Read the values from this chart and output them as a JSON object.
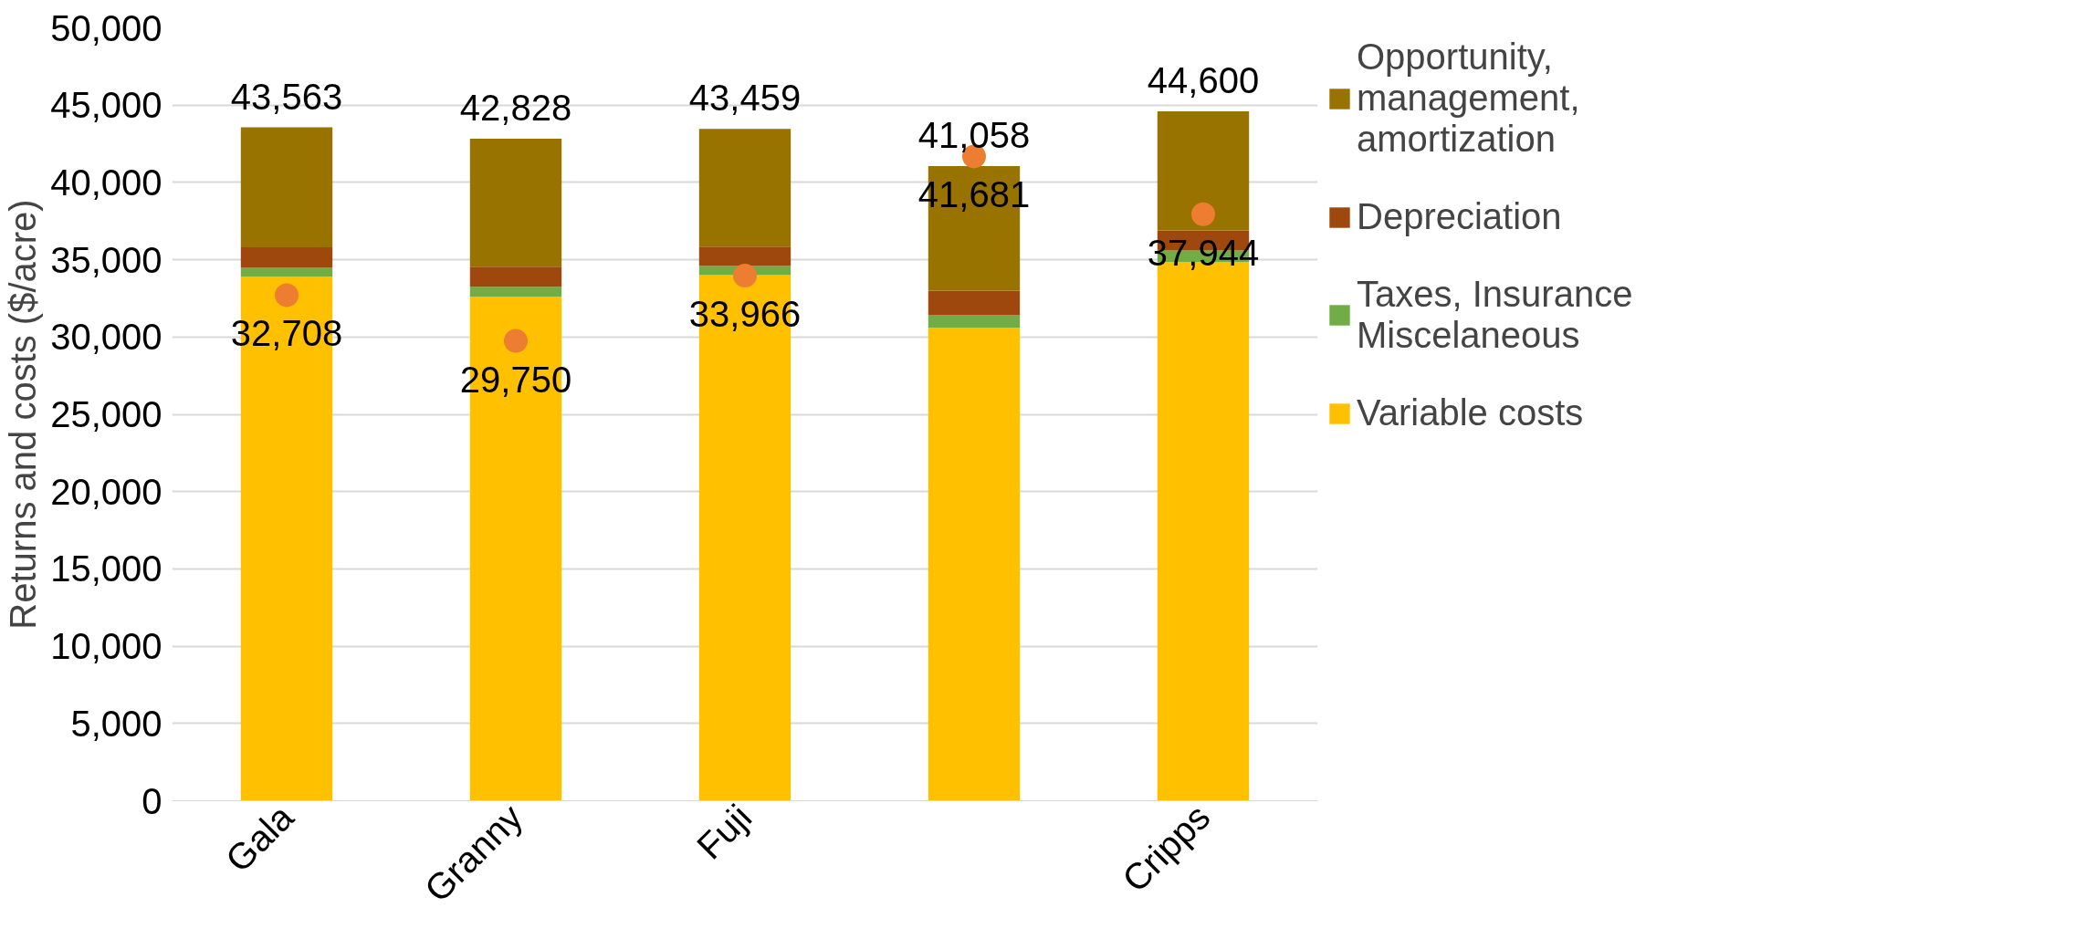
{
  "chart_data": {
    "type": "bar",
    "stacked": true,
    "ylabel": "Returns and costs ($/acre)",
    "categories": [
      "Gala",
      "Granny",
      "Fuji",
      null,
      "Cripps"
    ],
    "series": [
      {
        "name": "Variable costs",
        "color": "#ffc000",
        "values": [
          33900,
          32600,
          34000,
          30600,
          34850
        ]
      },
      {
        "name": "Taxes, Insurance Miscelaneous",
        "color": "#70ad47",
        "values": [
          600,
          650,
          600,
          800,
          750
        ]
      },
      {
        "name": "Depreciation",
        "color": "#9e480e",
        "values": [
          1300,
          1300,
          1250,
          1600,
          1300
        ]
      },
      {
        "name": "Opportunity, management, amortization",
        "color": "#997300",
        "values": [
          7763,
          8278,
          7609,
          8058,
          7700
        ]
      },
      {
        "type": "scatter",
        "color": "#ed7d31",
        "values": [
          32708,
          29750,
          33966,
          41681,
          37944
        ],
        "value_labels": [
          "32,708",
          "29,750",
          "33,966",
          "41,681",
          "37,944"
        ]
      }
    ],
    "totals": [
      "43,563",
      "42,828",
      "43,459",
      "41,058",
      "44,600"
    ],
    "ylim": [
      0,
      50000
    ],
    "yticks": [
      0,
      {
        "value": 5000,
        "label": "5,000"
      },
      {
        "value": 10000,
        "label": "10,000"
      },
      {
        "value": 15000,
        "label": "15,000"
      },
      {
        "value": 20000,
        "label": "20,000"
      },
      {
        "value": 25000,
        "label": "25,000"
      },
      {
        "value": 30000,
        "label": "30,000"
      },
      {
        "value": 35000,
        "label": "35,000"
      },
      {
        "value": 40000,
        "label": "40,000"
      },
      {
        "value": 45000,
        "label": "45,000"
      },
      {
        "value": 50000,
        "label": "50,000"
      }
    ],
    "grid": "y",
    "legend": "right",
    "marker": "circle"
  }
}
